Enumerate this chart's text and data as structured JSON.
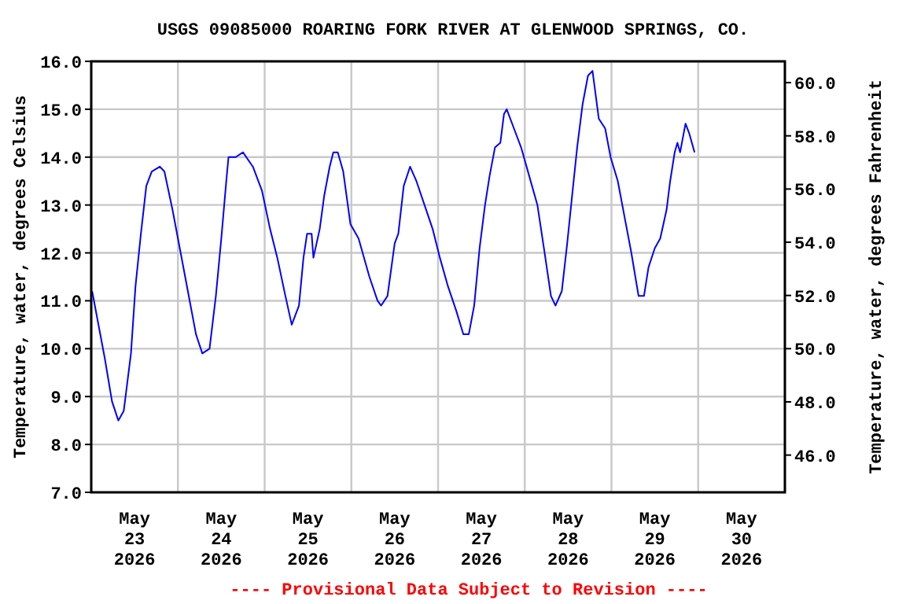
{
  "chart_data": {
    "type": "line",
    "title": "USGS 09085000 ROARING FORK RIVER AT GLENWOOD SPRINGS, CO.",
    "ylabel": "Temperature, water, degrees Celsius",
    "y2label": "Temperature, water, degrees Fahrenheit",
    "annotations": [
      "---- Provisional Data Subject to Revision ----"
    ],
    "grid": true,
    "marker": "none",
    "line_style": "solid",
    "xlim": [
      "2026-05-23T00:00",
      "2026-05-31T00:00"
    ],
    "xticks": [
      {
        "value": "2026-05-23T00:00",
        "label": null
      },
      {
        "value": "2026-05-24T00:00",
        "label": null
      },
      {
        "value": "2026-05-25T00:00",
        "label": null
      },
      {
        "value": "2026-05-26T00:00",
        "label": null
      },
      {
        "value": "2026-05-27T00:00",
        "label": null
      },
      {
        "value": "2026-05-28T00:00",
        "label": null
      },
      {
        "value": "2026-05-29T00:00",
        "label": null
      },
      {
        "value": "2026-05-30T00:00",
        "label": null
      },
      {
        "value": "2026-05-31T00:00",
        "label": null
      },
      {
        "value": "2026-05-23T12:00",
        "label": "May\n23\n2026"
      },
      {
        "value": "2026-05-24T12:00",
        "label": "May\n24\n2026"
      },
      {
        "value": "2026-05-25T12:00",
        "label": "May\n25\n2026"
      },
      {
        "value": "2026-05-26T12:00",
        "label": "May\n26\n2026"
      },
      {
        "value": "2026-05-27T12:00",
        "label": "May\n27\n2026"
      },
      {
        "value": "2026-05-28T12:00",
        "label": "May\n28\n2026"
      },
      {
        "value": "2026-05-29T12:00",
        "label": "May\n29\n2026"
      },
      {
        "value": "2026-05-30T12:00",
        "label": "May\n30\n2026"
      }
    ],
    "ylim": [
      7,
      16
    ],
    "yticks": [
      {
        "value": 7,
        "label": "7.0"
      },
      {
        "value": 8,
        "label": "8.0"
      },
      {
        "value": 9,
        "label": "9.0"
      },
      {
        "value": 10,
        "label": "10.0"
      },
      {
        "value": 11,
        "label": "11.0"
      },
      {
        "value": 12,
        "label": "12.0"
      },
      {
        "value": 13,
        "label": "13.0"
      },
      {
        "value": 14,
        "label": "14.0"
      },
      {
        "value": 15,
        "label": "15.0"
      },
      {
        "value": 16,
        "label": "16.0"
      }
    ],
    "y2lim": [
      44.6,
      60.8
    ],
    "y2ticks": [
      {
        "value": 46,
        "label": "46.0"
      },
      {
        "value": 48,
        "label": "48.0"
      },
      {
        "value": 50,
        "label": "50.0"
      },
      {
        "value": 52,
        "label": "52.0"
      },
      {
        "value": 54,
        "label": "54.0"
      },
      {
        "value": 56,
        "label": "56.0"
      },
      {
        "value": 58,
        "label": "58.0"
      },
      {
        "value": 60,
        "label": "60.0"
      }
    ],
    "series": [
      {
        "color": "#0000ff",
        "x": [
          "2026-05-23T00:15",
          "2026-05-23T01:45",
          "2026-05-23T03:45",
          "2026-05-23T05:45",
          "2026-05-23T07:30",
          "2026-05-23T09:00",
          "2026-05-23T11:00",
          "2026-05-23T12:15",
          "2026-05-23T13:45",
          "2026-05-23T15:15",
          "2026-05-23T16:45",
          "2026-05-23T19:00",
          "2026-05-23T20:15",
          "2026-05-23T22:30",
          "2026-05-24T00:45",
          "2026-05-24T02:45",
          "2026-05-24T05:00",
          "2026-05-24T06:45",
          "2026-05-24T08:45",
          "2026-05-24T10:30",
          "2026-05-24T12:00",
          "2026-05-24T13:30",
          "2026-05-24T14:00",
          "2026-05-24T16:00",
          "2026-05-24T18:00",
          "2026-05-24T20:45",
          "2026-05-24T23:15",
          "2026-05-25T01:30",
          "2026-05-25T03:30",
          "2026-05-25T05:45",
          "2026-05-25T07:30",
          "2026-05-25T09:30",
          "2026-05-25T10:45",
          "2026-05-25T11:45",
          "2026-05-25T13:00",
          "2026-05-25T13:30",
          "2026-05-25T15:15",
          "2026-05-25T16:30",
          "2026-05-25T18:00",
          "2026-05-25T19:00",
          "2026-05-25T20:15",
          "2026-05-25T21:45",
          "2026-05-25T23:45",
          "2026-05-26T02:00",
          "2026-05-26T05:00",
          "2026-05-26T07:15",
          "2026-05-26T08:15",
          "2026-05-26T10:00",
          "2026-05-26T12:00",
          "2026-05-26T13:00",
          "2026-05-26T14:30",
          "2026-05-26T16:15",
          "2026-05-26T18:00",
          "2026-05-26T20:15",
          "2026-05-26T22:30",
          "2026-05-27T00:30",
          "2026-05-27T02:45",
          "2026-05-27T05:00",
          "2026-05-27T07:00",
          "2026-05-27T08:30",
          "2026-05-27T10:00",
          "2026-05-27T11:30",
          "2026-05-27T13:00",
          "2026-05-27T14:15",
          "2026-05-27T15:45",
          "2026-05-27T17:15",
          "2026-05-27T18:15",
          "2026-05-27T19:00",
          "2026-05-27T21:00",
          "2026-05-27T23:00",
          "2026-05-28T01:15",
          "2026-05-28T03:30",
          "2026-05-28T05:30",
          "2026-05-28T07:15",
          "2026-05-28T08:30",
          "2026-05-28T10:15",
          "2026-05-28T11:45",
          "2026-05-28T13:15",
          "2026-05-28T14:30",
          "2026-05-28T16:00",
          "2026-05-28T17:30",
          "2026-05-28T18:45",
          "2026-05-28T20:30",
          "2026-05-28T22:15",
          "2026-05-28T23:45",
          "2026-05-29T01:45",
          "2026-05-29T03:30",
          "2026-05-29T05:30",
          "2026-05-29T07:30",
          "2026-05-29T09:00",
          "2026-05-29T10:15",
          "2026-05-29T12:00",
          "2026-05-29T13:30",
          "2026-05-29T15:15",
          "2026-05-29T16:15",
          "2026-05-29T17:30",
          "2026-05-29T18:15",
          "2026-05-29T19:00",
          "2026-05-29T20:30",
          "2026-05-29T21:30",
          "2026-05-29T23:00"
        ],
        "values": [
          11.2,
          10.6,
          9.8,
          8.9,
          8.5,
          8.7,
          9.9,
          11.3,
          12.4,
          13.4,
          13.7,
          13.8,
          13.7,
          12.9,
          12.0,
          11.2,
          10.3,
          9.9,
          10.0,
          11.1,
          12.3,
          13.6,
          14.0,
          14.0,
          14.1,
          13.8,
          13.3,
          12.5,
          11.9,
          11.1,
          10.5,
          10.9,
          11.9,
          12.4,
          12.4,
          11.9,
          12.5,
          13.2,
          13.8,
          14.1,
          14.1,
          13.7,
          12.6,
          12.3,
          11.5,
          11.0,
          10.9,
          11.1,
          12.2,
          12.4,
          13.4,
          13.8,
          13.5,
          13.0,
          12.5,
          11.9,
          11.3,
          10.8,
          10.3,
          10.3,
          10.9,
          12.1,
          13.0,
          13.6,
          14.2,
          14.3,
          14.9,
          15.0,
          14.6,
          14.2,
          13.6,
          13.0,
          12.0,
          11.1,
          10.9,
          11.2,
          12.2,
          13.3,
          14.2,
          15.1,
          15.7,
          15.8,
          14.8,
          14.6,
          14.0,
          13.5,
          12.8,
          12.0,
          11.1,
          11.1,
          11.7,
          12.1,
          12.3,
          12.9,
          13.5,
          14.1,
          14.3,
          14.1,
          14.7,
          14.5,
          14.1
        ]
      }
    ]
  }
}
